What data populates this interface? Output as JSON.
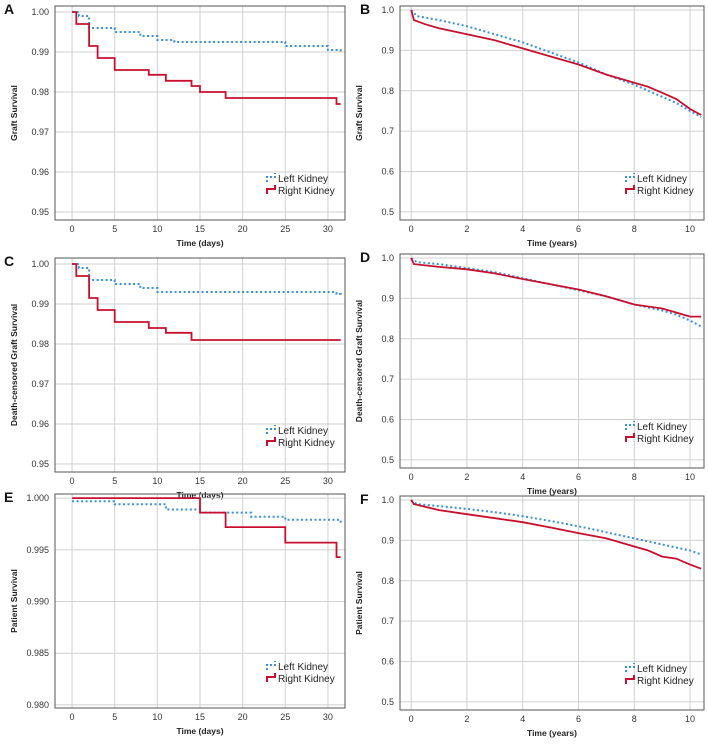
{
  "colors": {
    "left": "#3a8fe0",
    "right": "#c8102e"
  },
  "chart_data": [
    {
      "letter": "A",
      "type": "line",
      "xlabel": "Time (days)",
      "ylabel": "Graft Survival",
      "xlim": [
        -2,
        32
      ],
      "ylim": [
        0.948,
        1.0015
      ],
      "xticks": [
        0,
        5,
        10,
        15,
        20,
        25,
        30
      ],
      "yticks": [
        0.95,
        0.96,
        0.97,
        0.98,
        0.99,
        1.0
      ],
      "ytick_labels": [
        "0.95",
        "0.96",
        "0.97",
        "0.98",
        "0.99",
        "1.00"
      ],
      "series": [
        {
          "name": "Left Kidney",
          "style": "step-dotted",
          "x": [
            0,
            0.8,
            2,
            5,
            8,
            10,
            12,
            25,
            30,
            31.5
          ],
          "y": [
            1.0,
            0.999,
            0.996,
            0.995,
            0.994,
            0.993,
            0.9925,
            0.9915,
            0.9905,
            0.99
          ]
        },
        {
          "name": "Right Kidney",
          "style": "step-solid",
          "x": [
            0,
            0.5,
            2,
            3,
            5,
            9,
            11,
            14,
            15,
            18,
            31,
            31.5
          ],
          "y": [
            1.0,
            0.997,
            0.9915,
            0.9885,
            0.9855,
            0.9843,
            0.9828,
            0.9815,
            0.98,
            0.9785,
            0.977,
            0.977
          ]
        }
      ]
    },
    {
      "letter": "B",
      "type": "line",
      "xlabel": "Time (years)",
      "ylabel": "Graft Survival",
      "xlim": [
        -0.4,
        10.5
      ],
      "ylim": [
        0.48,
        1.01
      ],
      "xticks": [
        0,
        2,
        4,
        6,
        8,
        10
      ],
      "yticks": [
        0.5,
        0.6,
        0.7,
        0.8,
        0.9,
        1.0
      ],
      "ytick_labels": [
        "0.5",
        "0.6",
        "0.7",
        "0.8",
        "0.9",
        "1.0"
      ],
      "series": [
        {
          "name": "Left Kidney",
          "style": "line-dotted",
          "x": [
            0,
            0.2,
            1,
            2,
            3,
            4,
            5,
            6,
            7,
            8,
            9,
            9.5,
            10,
            10.4
          ],
          "y": [
            1.0,
            0.985,
            0.975,
            0.96,
            0.94,
            0.92,
            0.895,
            0.87,
            0.84,
            0.815,
            0.785,
            0.77,
            0.75,
            0.735
          ]
        },
        {
          "name": "Right Kidney",
          "style": "line-solid",
          "x": [
            0,
            0.1,
            0.5,
            1,
            2,
            3,
            4,
            5,
            6,
            7,
            8,
            8.5,
            9,
            9.5,
            10,
            10.4
          ],
          "y": [
            1.0,
            0.975,
            0.965,
            0.955,
            0.94,
            0.925,
            0.905,
            0.885,
            0.865,
            0.84,
            0.82,
            0.81,
            0.795,
            0.78,
            0.755,
            0.74
          ]
        }
      ]
    },
    {
      "letter": "C",
      "type": "line",
      "xlabel": "Time (days)",
      "ylabel": "Death-censored Graft Survival",
      "xlim": [
        -2,
        32
      ],
      "ylim": [
        0.948,
        1.0015
      ],
      "xticks": [
        0,
        5,
        10,
        15,
        20,
        25,
        30
      ],
      "yticks": [
        0.95,
        0.96,
        0.97,
        0.98,
        0.99,
        1.0
      ],
      "ytick_labels": [
        "0.95",
        "0.96",
        "0.97",
        "0.98",
        "0.99",
        "1.00"
      ],
      "series": [
        {
          "name": "Left Kidney",
          "style": "step-dotted",
          "x": [
            0,
            0.8,
            2,
            5,
            8,
            10,
            31,
            31.5
          ],
          "y": [
            1.0,
            0.999,
            0.996,
            0.995,
            0.994,
            0.993,
            0.9925,
            0.992
          ]
        },
        {
          "name": "Right Kidney",
          "style": "step-solid",
          "x": [
            0,
            0.5,
            2,
            3,
            5,
            9,
            11,
            14,
            31.5
          ],
          "y": [
            1.0,
            0.997,
            0.9915,
            0.9885,
            0.9855,
            0.984,
            0.9828,
            0.981,
            0.981
          ]
        }
      ]
    },
    {
      "letter": "D",
      "type": "line",
      "xlabel": "Time (years)",
      "ylabel": "Death-censored Graft Survival",
      "xlim": [
        -0.4,
        10.5
      ],
      "ylim": [
        0.48,
        1.01
      ],
      "xticks": [
        0,
        2,
        4,
        6,
        8,
        10
      ],
      "yticks": [
        0.5,
        0.6,
        0.7,
        0.8,
        0.9,
        1.0
      ],
      "ytick_labels": [
        "0.5",
        "0.6",
        "0.7",
        "0.8",
        "0.9",
        "1.0"
      ],
      "series": [
        {
          "name": "Left Kidney",
          "style": "line-dotted",
          "x": [
            0,
            0.2,
            1,
            2,
            3,
            4,
            5,
            6,
            7,
            8,
            9,
            9.5,
            10,
            10.4
          ],
          "y": [
            1.0,
            0.99,
            0.985,
            0.975,
            0.965,
            0.95,
            0.935,
            0.92,
            0.905,
            0.885,
            0.87,
            0.86,
            0.845,
            0.83
          ]
        },
        {
          "name": "Right Kidney",
          "style": "line-solid",
          "x": [
            0,
            0.1,
            1,
            2,
            3,
            4,
            5,
            6,
            7,
            8,
            9,
            9.5,
            10,
            10.4
          ],
          "y": [
            1.0,
            0.985,
            0.978,
            0.972,
            0.962,
            0.948,
            0.935,
            0.922,
            0.905,
            0.885,
            0.875,
            0.865,
            0.855,
            0.855
          ]
        }
      ]
    },
    {
      "letter": "E",
      "type": "line",
      "xlabel": "Time (days)",
      "ylabel": "Patient Survival",
      "xlim": [
        -2,
        32
      ],
      "ylim": [
        0.9797,
        1.0004
      ],
      "xticks": [
        0,
        5,
        10,
        15,
        20,
        25,
        30
      ],
      "yticks": [
        0.98,
        0.985,
        0.99,
        0.995,
        1.0
      ],
      "ytick_labels": [
        "0.980",
        "0.985",
        "0.990",
        "0.995",
        "1.000"
      ],
      "series": [
        {
          "name": "Left Kidney",
          "style": "step-dotted",
          "x": [
            0,
            5,
            11,
            15,
            21,
            25,
            31.5
          ],
          "y": [
            0.9997,
            0.9994,
            0.9989,
            0.9986,
            0.9982,
            0.9979,
            0.9976
          ]
        },
        {
          "name": "Right Kidney",
          "style": "step-solid",
          "x": [
            0,
            15,
            18,
            25,
            31,
            31.5
          ],
          "y": [
            1.0,
            0.9986,
            0.9972,
            0.9957,
            0.9943,
            0.9943
          ]
        }
      ]
    },
    {
      "letter": "F",
      "type": "line",
      "xlabel": "Time (years)",
      "ylabel": "Patient Survival",
      "xlim": [
        -0.4,
        10.5
      ],
      "ylim": [
        0.48,
        1.01
      ],
      "xticks": [
        0,
        2,
        4,
        6,
        8,
        10
      ],
      "yticks": [
        0.5,
        0.6,
        0.7,
        0.8,
        0.9,
        1.0
      ],
      "ytick_labels": [
        "0.5",
        "0.6",
        "0.7",
        "0.8",
        "0.9",
        "1.0"
      ],
      "series": [
        {
          "name": "Left Kidney",
          "style": "line-dotted",
          "x": [
            0,
            0.2,
            1,
            2,
            3,
            4,
            5,
            6,
            7,
            8,
            9,
            10,
            10.4
          ],
          "y": [
            1.0,
            0.99,
            0.985,
            0.978,
            0.97,
            0.96,
            0.948,
            0.935,
            0.92,
            0.905,
            0.89,
            0.875,
            0.865
          ]
        },
        {
          "name": "Right Kidney",
          "style": "line-solid",
          "x": [
            0,
            0.1,
            1,
            2,
            3,
            4,
            5,
            6,
            7,
            8,
            8.5,
            9,
            9.5,
            10,
            10.4
          ],
          "y": [
            1.0,
            0.99,
            0.975,
            0.965,
            0.955,
            0.945,
            0.932,
            0.918,
            0.905,
            0.885,
            0.875,
            0.86,
            0.855,
            0.84,
            0.83
          ]
        }
      ]
    }
  ]
}
